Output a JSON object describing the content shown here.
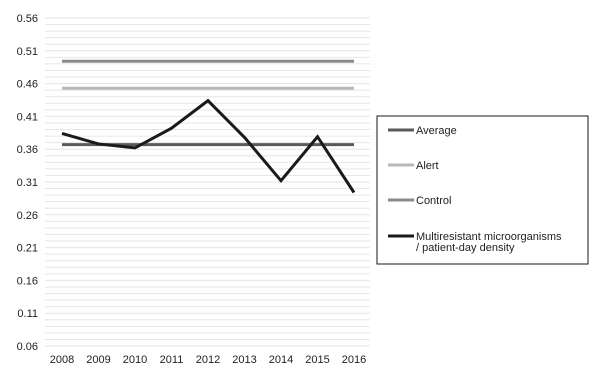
{
  "chart_data": {
    "type": "line",
    "title": "",
    "xlabel": "",
    "ylabel": "",
    "categories": [
      "2008",
      "2009",
      "2010",
      "2011",
      "2012",
      "2013",
      "2014",
      "2015",
      "2016"
    ],
    "ylim": [
      0.06,
      0.56
    ],
    "yticks": [
      0.06,
      0.11,
      0.16,
      0.21,
      0.26,
      0.31,
      0.36,
      0.41,
      0.46,
      0.51,
      0.56
    ],
    "ytick_labels": [
      "0.06",
      "0.11",
      "0.16",
      "0.21",
      "0.26",
      "0.31",
      "0.36",
      "0.41",
      "0.46",
      "0.51",
      "0.56"
    ],
    "grid": true,
    "legend_position": "right",
    "series": [
      {
        "name": "Average",
        "color": "#5a5a5a",
        "values": [
          0.367,
          0.367,
          0.367,
          0.367,
          0.367,
          0.367,
          0.367,
          0.367,
          0.367
        ]
      },
      {
        "name": "Alert",
        "color": "#b8b8b8",
        "values": [
          0.453,
          0.453,
          0.453,
          0.453,
          0.453,
          0.453,
          0.453,
          0.453,
          0.453
        ]
      },
      {
        "name": "Control",
        "color": "#8a8a8a",
        "values": [
          0.494,
          0.494,
          0.494,
          0.494,
          0.494,
          0.494,
          0.494,
          0.494,
          0.494
        ]
      },
      {
        "name": "Multiresistant microorganisms / patient-day density",
        "name_lines": [
          "Multiresistant microorganisms",
          "/ patient-day density"
        ],
        "color": "#1a1a1a",
        "values": [
          0.384,
          0.368,
          0.362,
          0.392,
          0.434,
          0.378,
          0.312,
          0.379,
          0.294
        ]
      }
    ]
  }
}
